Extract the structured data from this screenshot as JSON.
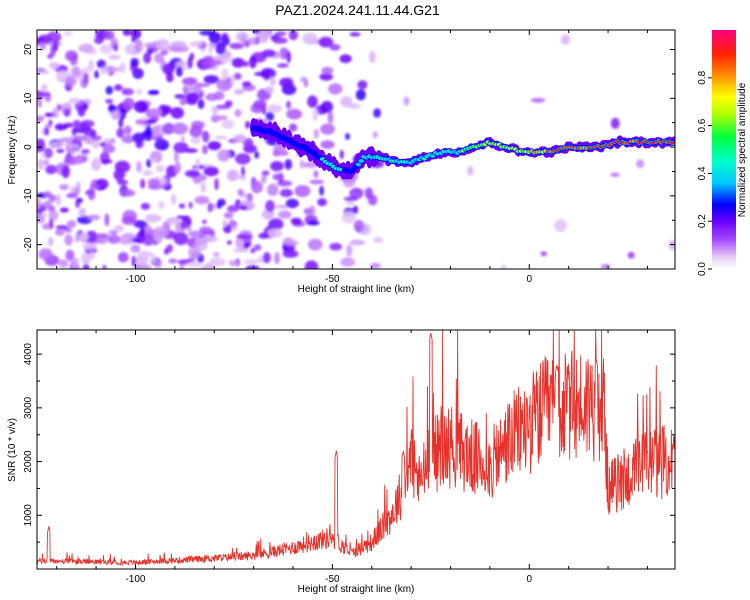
{
  "page": {
    "title": "PAZ1.2024.241.11.44.G21"
  },
  "chart_data": [
    {
      "id": "spectrogram",
      "type": "heatmap",
      "xlabel": "Height of straight line (km)",
      "ylabel": "Frequency (Hz)",
      "xlim": [
        -125,
        37
      ],
      "ylim": [
        -25,
        24
      ],
      "x_ticks": [
        -100,
        -50,
        0
      ],
      "y_ticks": [
        -20,
        -10,
        0,
        10,
        20
      ],
      "colorbar": {
        "label": "Normalized spectral amplitude",
        "range": [
          0,
          1
        ],
        "ticks": [
          "0.0",
          "0.2",
          "0.4",
          "0.6",
          "0.8"
        ],
        "tick_values": [
          0.0,
          0.2,
          0.4,
          0.6,
          0.8
        ]
      },
      "ridge": {
        "x": [
          -70,
          -65,
          -60,
          -55,
          -50,
          -45,
          -42,
          -38,
          -34,
          -30,
          -26,
          -22,
          -18,
          -14,
          -10,
          -6,
          -2,
          2,
          6,
          10,
          14,
          18,
          22,
          26,
          30,
          37
        ],
        "y": [
          4,
          3,
          1,
          -1,
          -4,
          -5,
          -2,
          -2,
          -3,
          -3,
          -2,
          -1,
          -1,
          0,
          1,
          0,
          -1,
          -1,
          -1,
          0,
          0,
          0,
          1,
          1,
          1,
          1
        ],
        "amplitude": [
          0.3,
          0.35,
          0.4,
          0.35,
          0.45,
          0.35,
          0.45,
          0.45,
          0.45,
          0.4,
          0.5,
          0.55,
          0.6,
          0.65,
          0.7,
          0.7,
          0.65,
          0.8,
          0.85,
          0.9,
          0.85,
          0.9,
          0.95,
          0.9,
          0.92,
          0.95
        ]
      }
    },
    {
      "id": "snr",
      "type": "line",
      "xlabel": "Height of straight line (km)",
      "ylabel": "SNR (10 * v/v)",
      "xlim": [
        -125,
        37
      ],
      "ylim": [
        0,
        4450
      ],
      "x_ticks": [
        -100,
        -50,
        0
      ],
      "y_ticks": [
        1000,
        2000,
        3000,
        4000
      ],
      "color": "#e8312a",
      "envelope": {
        "x": [
          -125,
          -100,
          -80,
          -70,
          -60,
          -55,
          -50,
          -47,
          -45,
          -40,
          -35,
          -32,
          -30,
          -28,
          -25,
          -20,
          -15,
          -10,
          -5,
          0,
          5,
          10,
          15,
          19,
          20,
          25,
          30,
          37
        ],
        "y": [
          150,
          120,
          200,
          250,
          400,
          500,
          600,
          400,
          300,
          500,
          1000,
          1500,
          2100,
          1600,
          2100,
          2300,
          2100,
          1900,
          2400,
          2700,
          3000,
          3000,
          3100,
          3000,
          1500,
          1700,
          2000,
          2000
        ]
      },
      "spikes": [
        {
          "x": -122,
          "y": 800
        },
        {
          "x": -49,
          "y": 2200
        },
        {
          "x": -32,
          "y": 2200
        },
        {
          "x": -25,
          "y": 4400
        },
        {
          "x": 7,
          "y": 3800
        },
        {
          "x": 17,
          "y": 3900
        }
      ]
    }
  ]
}
